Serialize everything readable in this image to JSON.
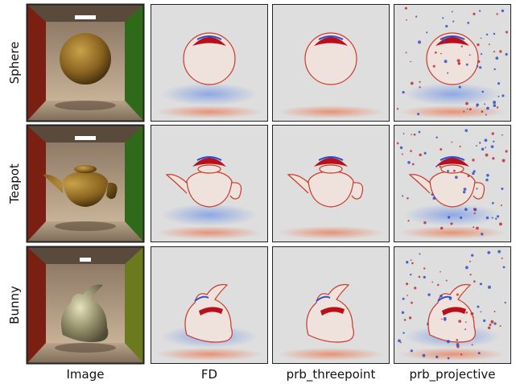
{
  "rows": [
    "Sphere",
    "Teapot",
    "Bunny"
  ],
  "columns": [
    "Image",
    "FD",
    "prb_threepoint",
    "prb_projective"
  ]
}
